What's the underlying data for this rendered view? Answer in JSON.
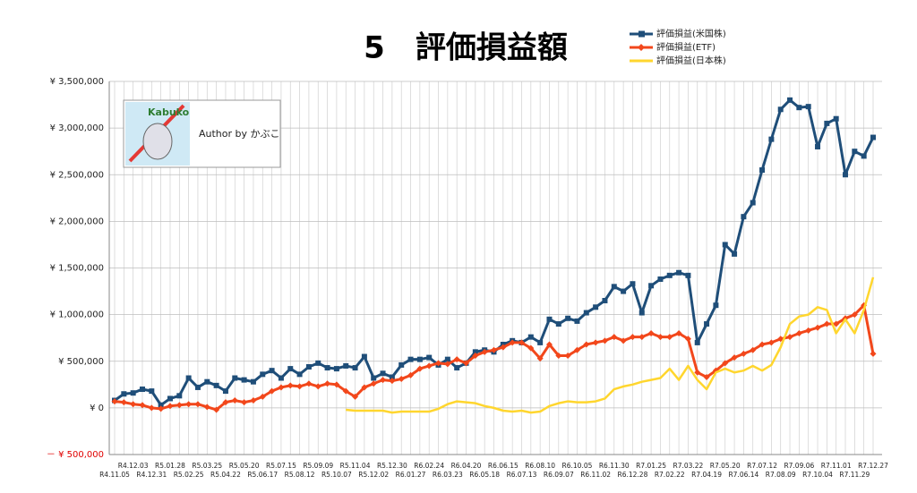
{
  "chart_data": {
    "type": "line",
    "title": "5　評価損益額",
    "annotations": [
      "Kabuko",
      "Author by かぶこ"
    ],
    "categories": [
      "R4.11.05",
      null,
      "R4.12.03",
      null,
      "R4.12.31",
      null,
      "R5.01.28",
      null,
      "R5.02.25",
      null,
      "R5.03.25",
      null,
      "R5.04.22",
      null,
      "R5.05.20",
      null,
      "R5.06.17",
      null,
      "R5.07.15",
      null,
      "R5.08.12",
      null,
      "R5.09.09",
      null,
      "R5.10.07",
      null,
      "R5.11.04",
      null,
      "R5.12.02",
      null,
      "R5.12.30",
      null,
      "R6.01.27",
      null,
      "R6.02.24",
      null,
      "R6.03.23",
      null,
      "R6.04.20",
      null,
      "R6.05.18",
      null,
      "R6.06.15",
      null,
      "R6.07.13",
      null,
      "R6.08.10",
      null,
      "R6.09.07",
      null,
      "R6.10.05",
      null,
      "R6.11.02",
      null,
      "R6.11.30",
      null,
      "R6.12.28",
      null,
      "R7.01.25",
      null,
      "R7.02.22",
      null,
      "R7.03.22",
      null,
      "R7.04.19",
      null,
      "R7.05.20",
      null,
      "R7.06.14",
      null,
      "R7.07.12",
      null,
      "R7.08.09",
      null,
      "R7.09.06",
      null,
      "R7.10.04",
      null,
      "R7.11.01",
      null,
      "R7.11.29",
      null,
      "R7.12.27"
    ],
    "series": [
      {
        "name": "評価損益(米国株)",
        "color": "#1f4e79",
        "marker": "square",
        "values": [
          80000,
          150000,
          160000,
          200000,
          180000,
          30000,
          100000,
          130000,
          320000,
          220000,
          280000,
          240000,
          180000,
          320000,
          300000,
          280000,
          360000,
          400000,
          320000,
          420000,
          360000,
          440000,
          480000,
          430000,
          420000,
          450000,
          430000,
          550000,
          320000,
          370000,
          330000,
          460000,
          520000,
          520000,
          540000,
          460000,
          520000,
          430000,
          480000,
          600000,
          620000,
          600000,
          680000,
          720000,
          700000,
          760000,
          700000,
          950000,
          900000,
          960000,
          930000,
          1020000,
          1080000,
          1150000,
          1300000,
          1250000,
          1330000,
          1020000,
          1310000,
          1380000,
          1420000,
          1450000,
          1420000,
          700000,
          900000,
          1100000,
          1750000,
          1650000,
          2050000,
          2200000,
          2550000,
          2880000,
          3200000,
          3300000,
          3220000,
          3230000,
          2800000,
          3050000,
          3100000,
          2500000,
          2750000,
          2700000,
          2900000
        ]
      },
      {
        "name": "評価損益(ETF)",
        "color": "#f2471b",
        "marker": "diamond",
        "values": [
          70000,
          60000,
          40000,
          30000,
          0,
          -10000,
          20000,
          30000,
          40000,
          40000,
          10000,
          -20000,
          60000,
          80000,
          60000,
          80000,
          120000,
          180000,
          220000,
          240000,
          230000,
          260000,
          230000,
          260000,
          250000,
          180000,
          120000,
          220000,
          260000,
          300000,
          290000,
          310000,
          350000,
          420000,
          450000,
          480000,
          470000,
          520000,
          480000,
          560000,
          600000,
          620000,
          650000,
          700000,
          700000,
          640000,
          530000,
          680000,
          560000,
          560000,
          620000,
          680000,
          700000,
          720000,
          760000,
          720000,
          760000,
          760000,
          800000,
          760000,
          760000,
          800000,
          740000,
          380000,
          330000,
          400000,
          480000,
          540000,
          580000,
          620000,
          680000,
          700000,
          740000,
          760000,
          800000,
          830000,
          860000,
          900000,
          900000,
          960000,
          1000000,
          1100000,
          580000
        ]
      },
      {
        "name": "評価損益(日本株)",
        "color": "#ffd62e",
        "marker": "none",
        "values": [
          null,
          null,
          null,
          null,
          null,
          null,
          null,
          null,
          null,
          null,
          null,
          null,
          null,
          null,
          null,
          null,
          null,
          null,
          null,
          null,
          null,
          null,
          null,
          null,
          null,
          -20000,
          -30000,
          -30000,
          -30000,
          -30000,
          -50000,
          -40000,
          -40000,
          -40000,
          -40000,
          -10000,
          40000,
          70000,
          60000,
          50000,
          20000,
          0,
          -30000,
          -40000,
          -30000,
          -50000,
          -40000,
          20000,
          50000,
          70000,
          60000,
          60000,
          70000,
          100000,
          200000,
          230000,
          250000,
          280000,
          300000,
          320000,
          420000,
          300000,
          450000,
          300000,
          200000,
          380000,
          420000,
          380000,
          400000,
          450000,
          400000,
          460000,
          650000,
          900000,
          980000,
          1000000,
          1080000,
          1050000,
          800000,
          950000,
          800000,
          1050000,
          1400000
        ]
      }
    ],
    "ylim": [
      -500000,
      3500000
    ],
    "yticks": [
      {
        "value": -500000,
        "label": "－ ¥ 500,000"
      },
      {
        "value": 0,
        "label": "¥ 0"
      },
      {
        "value": 500000,
        "label": "¥ 500,000"
      },
      {
        "value": 1000000,
        "label": "¥ 1,000,000"
      },
      {
        "value": 1500000,
        "label": "¥ 1,500,000"
      },
      {
        "value": 2000000,
        "label": "¥ 2,000,000"
      },
      {
        "value": 2500000,
        "label": "¥ 2,500,000"
      },
      {
        "value": 3000000,
        "label": "¥ 3,000,000"
      },
      {
        "value": 3500000,
        "label": "¥ 3,500,000"
      }
    ],
    "negative_color": "#e00000",
    "grid": true,
    "legend": "top-right"
  }
}
